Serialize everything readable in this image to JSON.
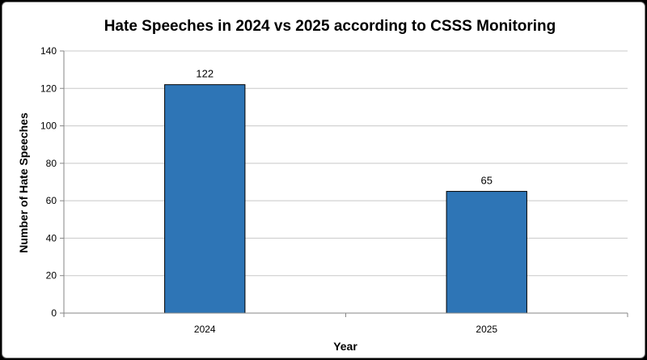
{
  "chart_data": {
    "type": "bar",
    "title": "Hate Speeches in 2024 vs 2025 according to CSSS Monitoring",
    "xlabel": "Year",
    "ylabel": "Number of Hate Speeches",
    "categories": [
      "2024",
      "2025"
    ],
    "values": [
      122,
      65
    ],
    "data_labels": [
      "122",
      "65"
    ],
    "ylim": [
      0,
      140
    ],
    "yticks": [
      0,
      20,
      40,
      60,
      80,
      100,
      120,
      140
    ],
    "ytick_labels": [
      "0",
      "20",
      "40",
      "60",
      "80",
      "100",
      "120",
      "140"
    ],
    "grid": true,
    "legend": "none",
    "bar_color": "#2e75b6",
    "bar_edge_color": "#000000"
  }
}
